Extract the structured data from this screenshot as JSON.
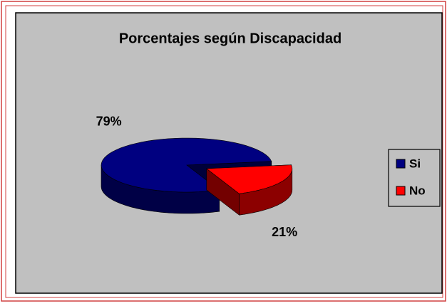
{
  "chart_data": {
    "type": "pie",
    "title": "Porcentajes según Discapacidad",
    "categories": [
      "Si",
      "No"
    ],
    "values": [
      79,
      21
    ],
    "value_labels": [
      "79%",
      "21%"
    ],
    "colors": [
      "#000080",
      "#ff0000"
    ],
    "legend": "right",
    "exploded": [
      false,
      true
    ]
  }
}
